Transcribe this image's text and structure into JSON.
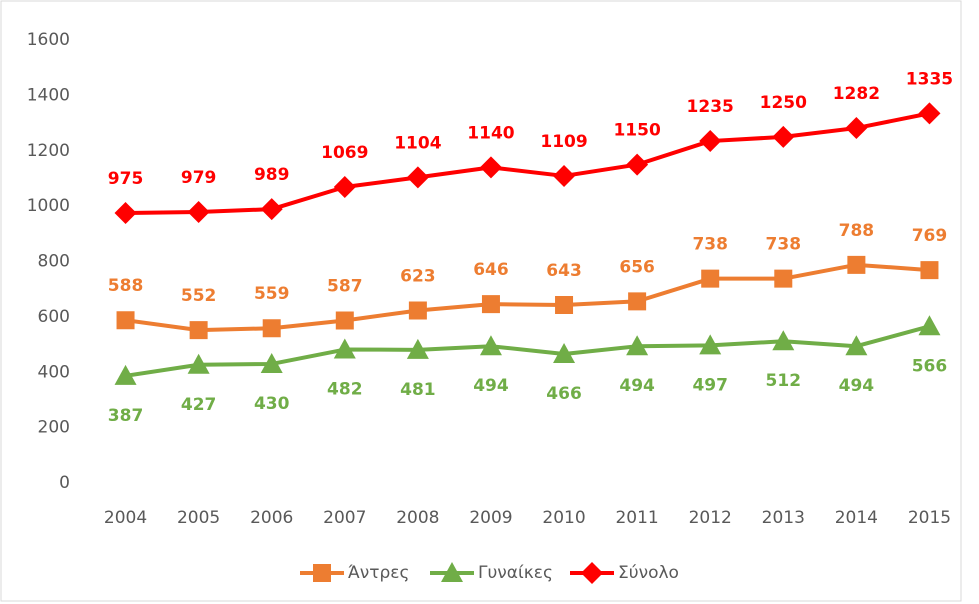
{
  "chart_data": {
    "type": "line",
    "categories": [
      "2004",
      "2005",
      "2006",
      "2007",
      "2008",
      "2009",
      "2010",
      "2011",
      "2012",
      "2013",
      "2014",
      "2015"
    ],
    "series": [
      {
        "name": "Άντρες",
        "color": "#ed7d31",
        "marker": "square",
        "values": [
          588,
          552,
          559,
          587,
          623,
          646,
          643,
          656,
          738,
          738,
          788,
          769
        ]
      },
      {
        "name": "Γυναίκες",
        "color": "#70ad47",
        "marker": "triangle",
        "values": [
          387,
          427,
          430,
          482,
          481,
          494,
          466,
          494,
          497,
          512,
          494,
          566
        ]
      },
      {
        "name": "Σύνολο",
        "color": "#ff0000",
        "marker": "diamond",
        "values": [
          975,
          979,
          989,
          1069,
          1104,
          1140,
          1109,
          1150,
          1235,
          1250,
          1282,
          1335
        ]
      }
    ],
    "ylim": [
      0,
      1600
    ],
    "yticks": [
      0,
      200,
      400,
      600,
      800,
      1000,
      1200,
      1400,
      1600
    ],
    "grid": false,
    "legend": "bottom"
  }
}
